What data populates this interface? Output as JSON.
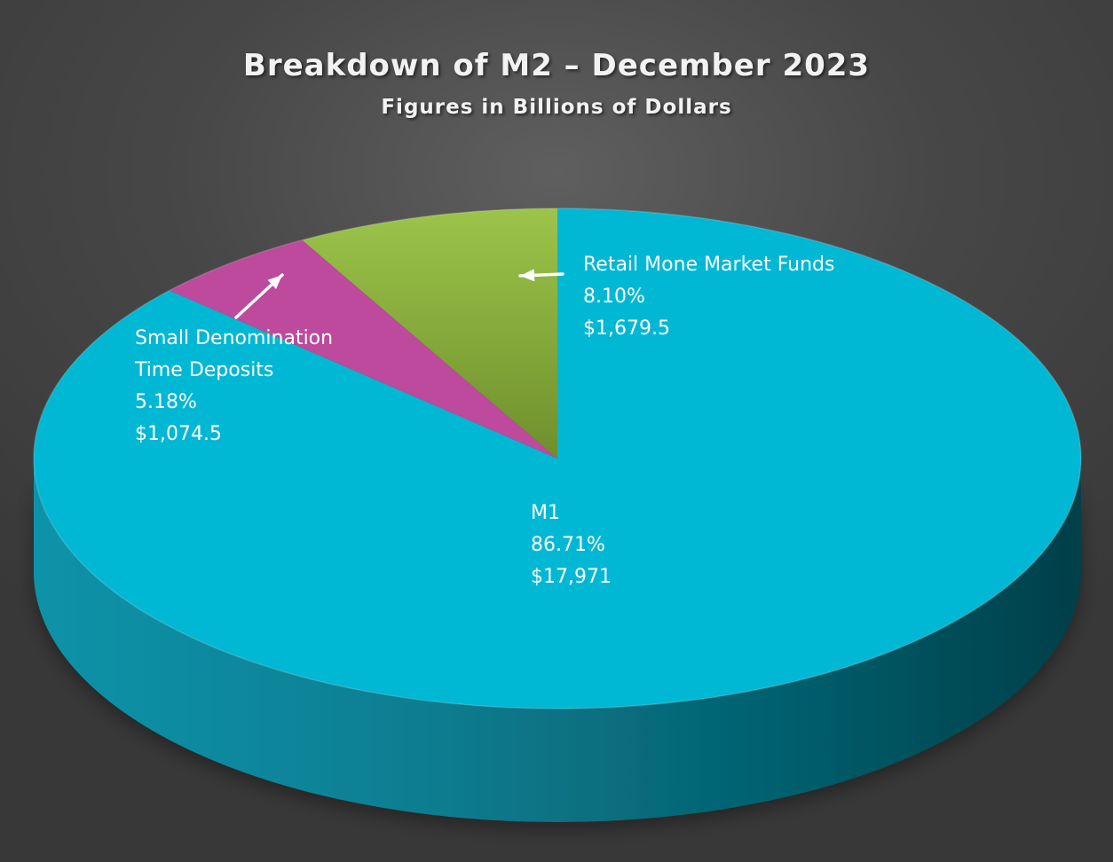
{
  "chart_data": {
    "type": "pie",
    "title": "Breakdown of M2 – December 2023",
    "subtitle": "Figures in Billions of Dollars",
    "slices": [
      {
        "name": "M1",
        "label_lines": [
          "M1"
        ],
        "percent": 86.71,
        "percent_label": "86.71%",
        "value": 17971,
        "value_label": "$17,971",
        "color": "#00b8d4"
      },
      {
        "name": "Small Denomination Time Deposits",
        "label_lines": [
          "Small Denomination",
          "Time Deposits"
        ],
        "percent": 5.18,
        "percent_label": "5.18%",
        "value": 1074.5,
        "value_label": "$1,074.5",
        "color": "#bd4a9c"
      },
      {
        "name": "Retail Mone Market Funds",
        "label_lines": [
          "Retail Mone Market Funds"
        ],
        "percent": 8.1,
        "percent_label": "8.10%",
        "value": 1679.5,
        "value_label": "$1,679.5",
        "color": "#8fb53e"
      }
    ]
  }
}
